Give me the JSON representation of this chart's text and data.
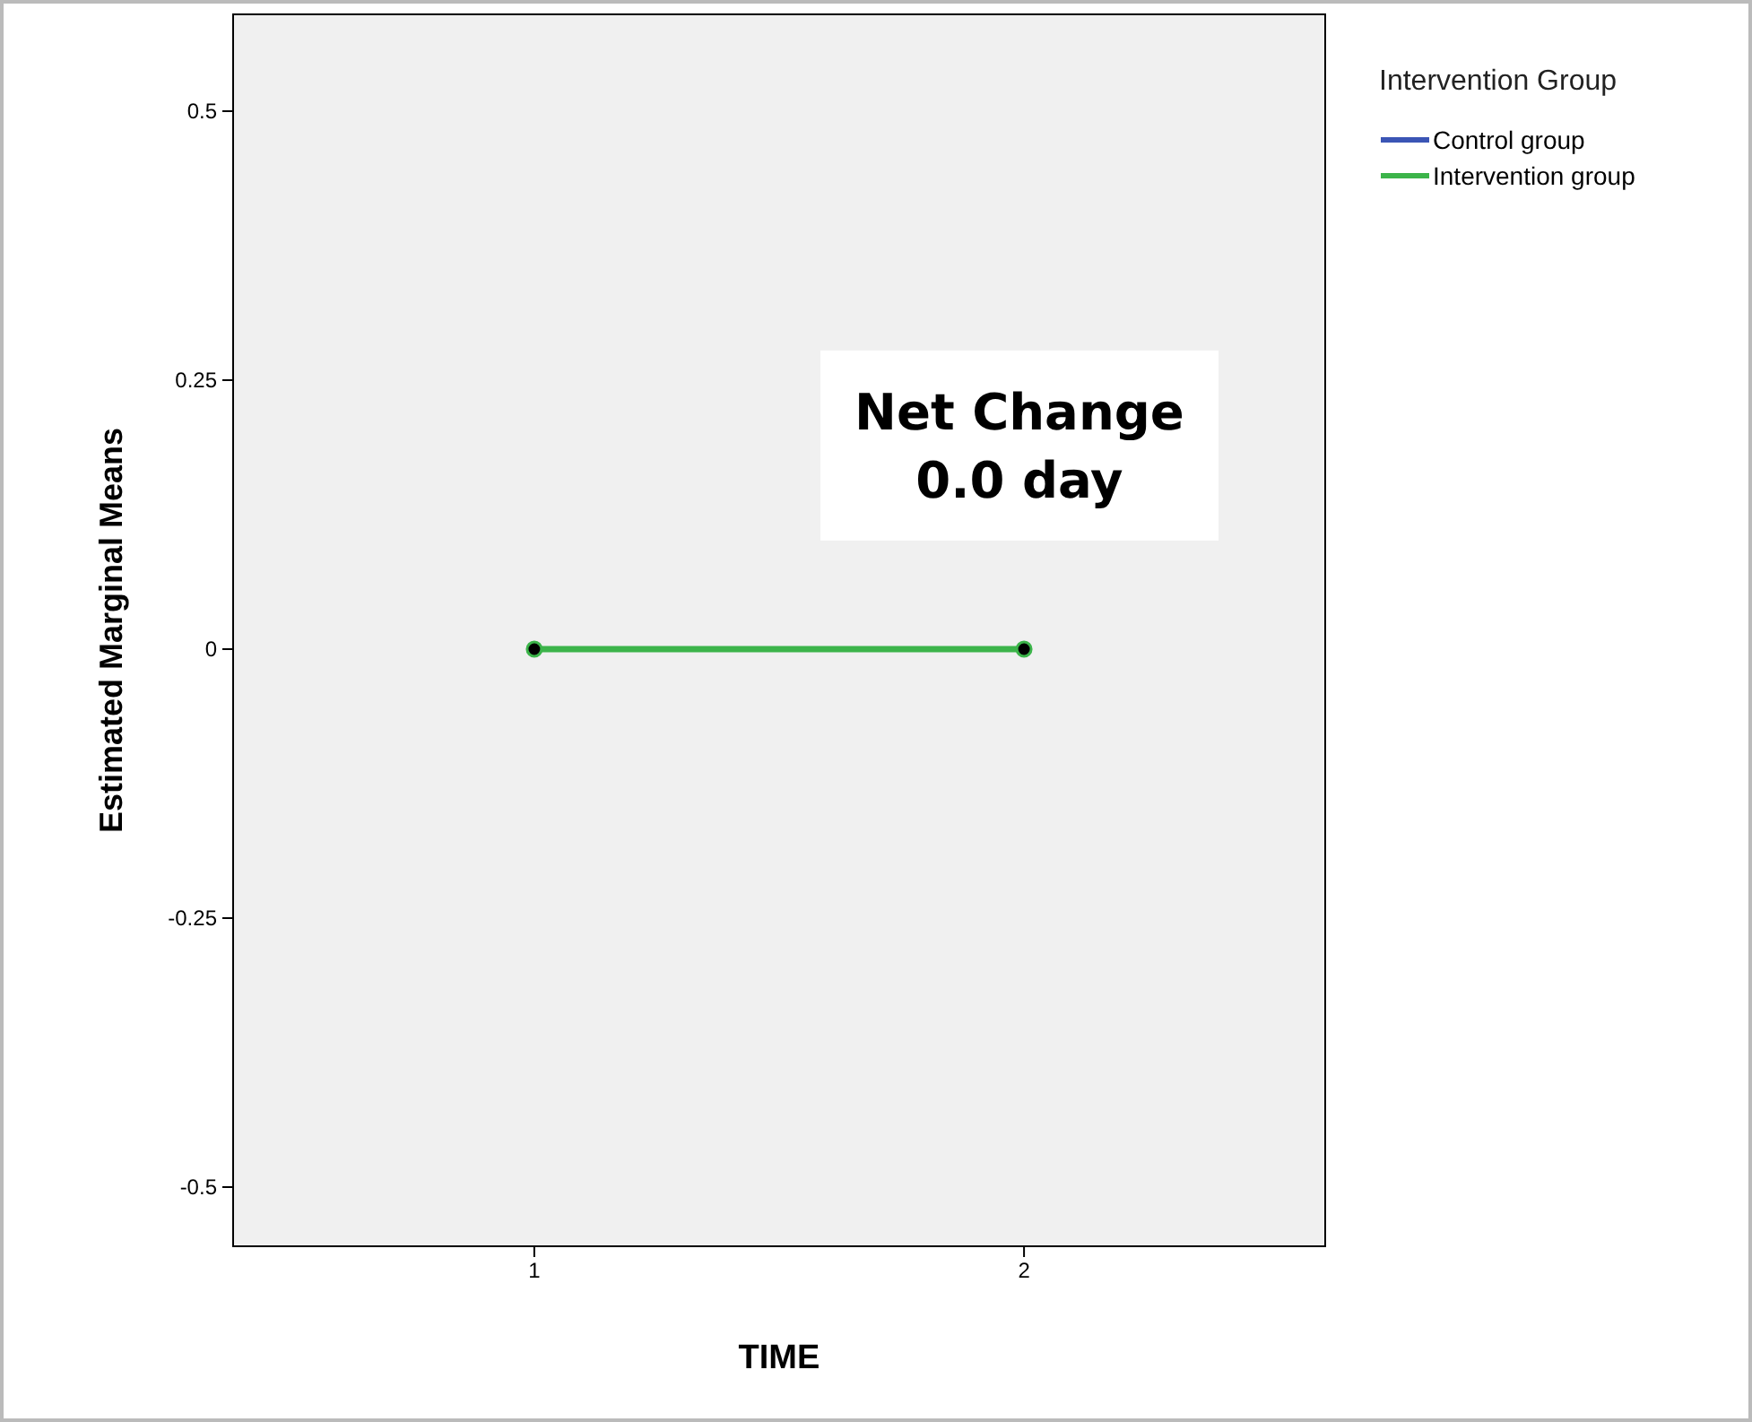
{
  "chart_data": {
    "type": "line",
    "xlabel": "TIME",
    "ylabel": "Estimated Marginal Means",
    "legend_title": "Intervention Group",
    "categories": [
      "1",
      "2"
    ],
    "series": [
      {
        "name": "Control group",
        "color": "#3b55b5",
        "values": [
          null,
          null
        ]
      },
      {
        "name": "Intervention group",
        "color": "#3cb44a",
        "values": [
          0,
          0
        ]
      }
    ],
    "ylim": [
      -0.555,
      0.59
    ],
    "yticks": [
      -0.5,
      -0.25,
      0,
      0.25,
      0.5
    ],
    "marker": "circle",
    "legend": "top right",
    "grid": false,
    "annotations": [
      "Net Change\n0.0 day"
    ]
  }
}
